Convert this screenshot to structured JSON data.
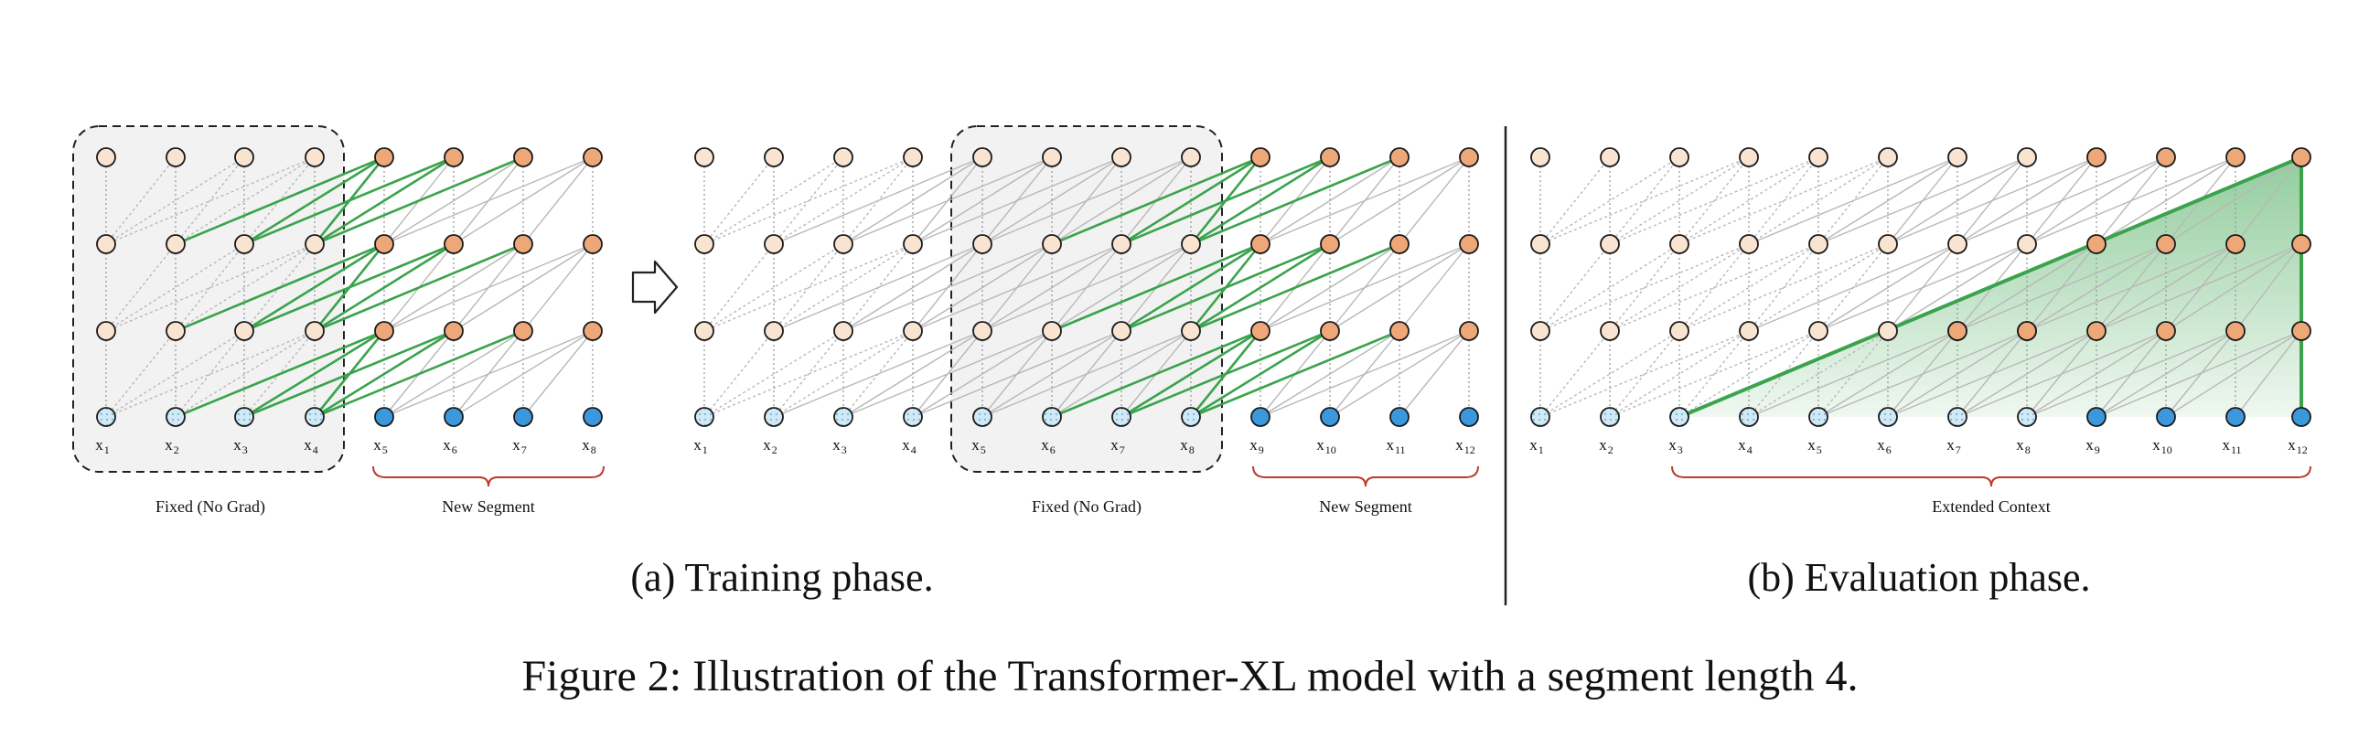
{
  "colors": {
    "old_hidden_fill": "#f9e3d1",
    "new_hidden_fill": "#eea878",
    "old_input_fill": "#cfeaf6",
    "new_input_fill": "#3b98dc",
    "node_stroke": "#1a1a1a",
    "grey_edge": "#b8b8b8",
    "green_edge": "#3aa34c",
    "fixed_box_fill": "#f2f2f2",
    "brace_color": "#c0392b",
    "eval_area": "#3aa34c"
  },
  "training": {
    "caption": "(a) Training phase.",
    "panel1": {
      "tokens": [
        "x",
        "x",
        "x",
        "x",
        "x",
        "x",
        "x",
        "x"
      ],
      "subs": [
        "1",
        "2",
        "3",
        "4",
        "5",
        "6",
        "7",
        "8"
      ],
      "fixed_label": "Fixed (No Grad)",
      "new_label": "New Segment"
    },
    "panel2": {
      "tokens": [
        "x",
        "x",
        "x",
        "x",
        "x",
        "x",
        "x",
        "x",
        "x",
        "x",
        "x",
        "x"
      ],
      "subs": [
        "1",
        "2",
        "3",
        "4",
        "5",
        "6",
        "7",
        "8",
        "9",
        "10",
        "11",
        "12"
      ],
      "fixed_label": "Fixed (No Grad)",
      "new_label": "New Segment"
    },
    "arrow_icon": "hollow-right-arrow"
  },
  "evaluation": {
    "caption": "(b) Evaluation phase.",
    "tokens": [
      "x",
      "x",
      "x",
      "x",
      "x",
      "x",
      "x",
      "x",
      "x",
      "x",
      "x",
      "x"
    ],
    "subs": [
      "1",
      "2",
      "3",
      "4",
      "5",
      "6",
      "7",
      "8",
      "9",
      "10",
      "11",
      "12"
    ],
    "context_label": "Extended Context"
  },
  "figure_caption": {
    "label": "Figure 2:",
    "text": "Illustration of the Transformer-XL model with a segment length 4."
  }
}
